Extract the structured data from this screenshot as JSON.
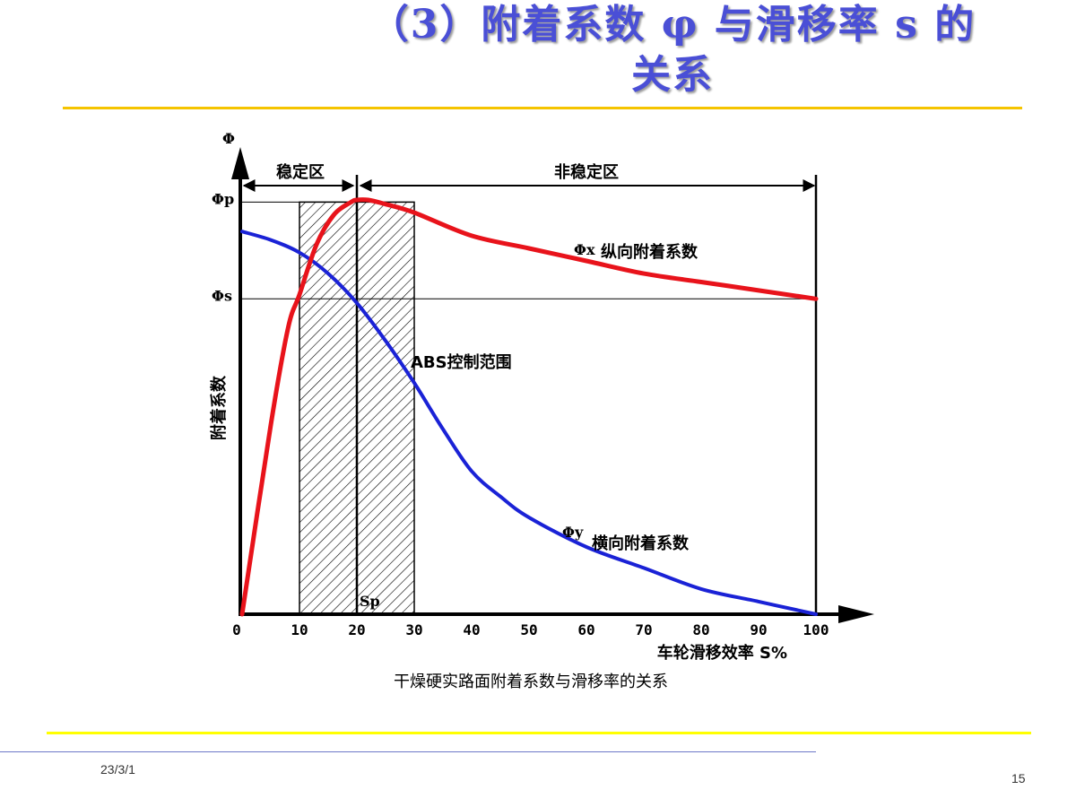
{
  "slide": {
    "title_line1": "（3）附着系数 φ 与滑移率 s 的",
    "title_line2": "关系",
    "footer_date": "23/3/1",
    "page_number": "15",
    "accent_rule_color": "#f5c400",
    "bottom_rule_color": "#ffff00"
  },
  "chart_data": {
    "type": "line",
    "y_axis_symbol": "Φ",
    "ylabel": "附着系数",
    "xlabel": "车轮滑移效率 S%",
    "caption": "干燥硬实路面附着系数与滑移率的关系",
    "x_ticks": [
      "0",
      "10",
      "20",
      "30",
      "40",
      "50",
      "60",
      "70",
      "80",
      "90",
      "100"
    ],
    "xlim": [
      0,
      100
    ],
    "ylim": [
      0,
      1
    ],
    "y_markers": [
      {
        "label": "Φp",
        "value": 0.98
      },
      {
        "label": "Φs",
        "value": 0.75
      }
    ],
    "regions": [
      {
        "label": "稳定区",
        "from": 0,
        "to": 20
      },
      {
        "label": "非稳定区",
        "from": 20,
        "to": 100
      }
    ],
    "abs_band": {
      "label": "ABS控制范围",
      "from": 10,
      "to": 30
    },
    "sp_marker": {
      "label": "Sp",
      "x": 20
    },
    "series": [
      {
        "name": "纵向附着系数",
        "symbol": "Φx",
        "color": "#e8131b",
        "x": [
          0,
          5,
          8,
          10,
          13,
          16,
          19,
          20,
          22,
          25,
          30,
          40,
          50,
          60,
          70,
          80,
          90,
          100
        ],
        "y": [
          0.0,
          0.45,
          0.68,
          0.76,
          0.88,
          0.95,
          0.98,
          0.985,
          0.985,
          0.975,
          0.955,
          0.9,
          0.87,
          0.84,
          0.81,
          0.79,
          0.77,
          0.75
        ]
      },
      {
        "name": "横向附着系数",
        "symbol": "Φy",
        "color": "#1a22d6",
        "x": [
          0,
          5,
          10,
          15,
          20,
          25,
          30,
          35,
          40,
          45,
          50,
          60,
          70,
          80,
          90,
          100
        ],
        "y": [
          0.91,
          0.89,
          0.86,
          0.81,
          0.74,
          0.65,
          0.55,
          0.44,
          0.34,
          0.28,
          0.23,
          0.16,
          0.11,
          0.06,
          0.03,
          0.0
        ]
      }
    ]
  }
}
